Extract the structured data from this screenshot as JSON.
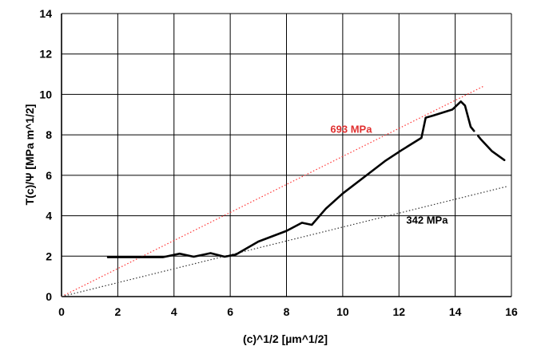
{
  "chart_data": {
    "type": "line",
    "xlabel": "(c)^1/2 [µm^1/2]",
    "ylabel": "T(c)/Ψ [MPa m^1/2]",
    "xlim": [
      0,
      16
    ],
    "ylim": [
      0,
      14
    ],
    "x_ticks": [
      0,
      2,
      4,
      6,
      8,
      10,
      12,
      14,
      16
    ],
    "y_ticks": [
      0,
      2,
      4,
      6,
      8,
      10,
      12,
      14
    ],
    "grid": true,
    "series": [
      {
        "color": "#000000",
        "style": "solid",
        "points": [
          [
            1.65,
            1.95
          ],
          [
            2.5,
            1.95
          ],
          [
            3.6,
            1.95
          ],
          [
            4.2,
            2.12
          ],
          [
            4.7,
            1.97
          ],
          [
            5.3,
            2.15
          ],
          [
            5.8,
            1.97
          ],
          [
            6.2,
            2.08
          ],
          [
            7.0,
            2.72
          ],
          [
            8.0,
            3.25
          ],
          [
            8.55,
            3.65
          ],
          [
            8.9,
            3.55
          ],
          [
            9.4,
            4.35
          ],
          [
            10.0,
            5.1
          ],
          [
            10.8,
            5.95
          ],
          [
            11.5,
            6.7
          ],
          [
            12.1,
            7.25
          ],
          [
            12.8,
            7.85
          ],
          [
            12.95,
            8.85
          ],
          [
            13.2,
            8.95
          ],
          [
            13.9,
            9.25
          ],
          [
            14.2,
            9.65
          ],
          [
            14.35,
            9.45
          ],
          [
            14.55,
            8.4
          ],
          [
            14.9,
            7.8
          ],
          [
            15.3,
            7.2
          ],
          [
            15.75,
            6.75
          ]
        ]
      },
      {
        "label": "693 MPa",
        "color": "#ff3333",
        "style": "dotted",
        "points": [
          [
            0,
            0
          ],
          [
            15.0,
            10.4
          ]
        ]
      },
      {
        "label": "342 MPa",
        "color": "#333333",
        "style": "dotted",
        "points": [
          [
            0,
            0
          ],
          [
            15.85,
            5.45
          ]
        ]
      }
    ],
    "annotations": [
      {
        "text": "693 MPa",
        "color": "#e03030",
        "x": 10.3,
        "y": 8.1
      },
      {
        "text": "342 MPa",
        "color": "#000000",
        "x": 13.0,
        "y": 3.6
      }
    ],
    "colors": {
      "background": "#ffffff",
      "grid": "#000000",
      "primary_line": "#000000",
      "high_fit": "#ff3333",
      "low_fit": "#333333"
    }
  }
}
